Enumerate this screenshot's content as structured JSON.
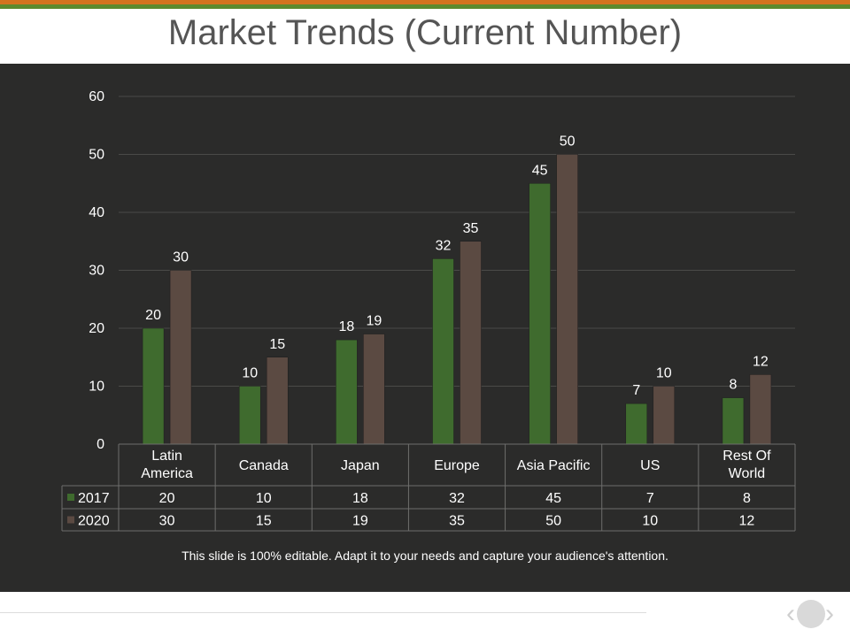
{
  "slide": {
    "title": "Market Trends (Current Number)",
    "caption": "This slide is 100% editable. Adapt it to your needs and capture your audience's attention."
  },
  "colors": {
    "background": "#2b2b2a",
    "gridline": "#4a4a48",
    "text": "#ffffff",
    "table_border": "#6e6e6c",
    "stripe_orange": "#d4731f",
    "stripe_green": "#5e8a2e"
  },
  "nav": {
    "prev_icon": "chevron-left-icon",
    "next_icon": "chevron-right-icon"
  },
  "chart_data": {
    "type": "bar",
    "categories": [
      "Latin America",
      "Canada",
      "Japan",
      "Europe",
      "Asia Pacific",
      "US",
      "Rest Of World"
    ],
    "series": [
      {
        "name": "2017",
        "values": [
          20,
          10,
          18,
          32,
          45,
          7,
          8
        ],
        "color": "#3f6b2e"
      },
      {
        "name": "2020",
        "values": [
          30,
          15,
          19,
          35,
          50,
          10,
          12
        ],
        "color": "#5b4a42"
      }
    ],
    "title": "",
    "xlabel": "",
    "ylabel": "",
    "ylim": [
      0,
      60
    ],
    "yticks": [
      0,
      10,
      20,
      30,
      40,
      50,
      60
    ],
    "grid": true,
    "data_labels": true,
    "legend": "data-table"
  }
}
